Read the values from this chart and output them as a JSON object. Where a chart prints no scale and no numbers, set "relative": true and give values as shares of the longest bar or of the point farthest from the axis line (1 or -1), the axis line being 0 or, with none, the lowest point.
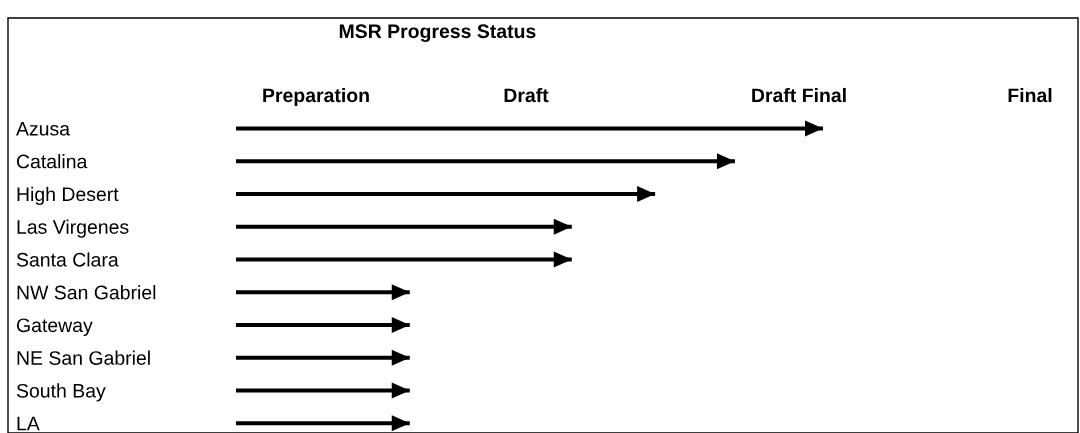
{
  "chart_data": {
    "type": "bar",
    "orientation": "horizontal",
    "relative": true,
    "title": "MSR Progress Status",
    "categories": [
      "Azusa",
      "Catalina",
      "High Desert",
      "Las Virgenes",
      "Santa Clara",
      "NW San Gabriel",
      "Gateway",
      "NE San Gabriel",
      "South Bay",
      "LA"
    ],
    "values": [
      1,
      0.85,
      0.714,
      0.572,
      0.572,
      0.296,
      0.296,
      0.296,
      0.296,
      0.296
    ],
    "color": "#000000",
    "annotations": [
      "Preparation",
      "Draft",
      "Draft Final",
      "Final"
    ],
    "grid": false
  }
}
